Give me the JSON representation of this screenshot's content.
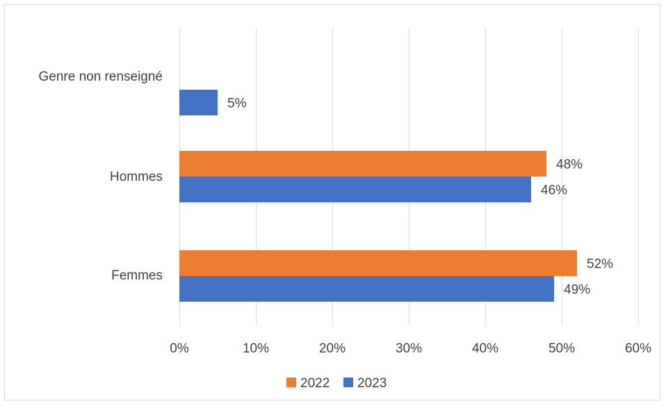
{
  "chart_data": {
    "type": "bar",
    "orientation": "horizontal",
    "categories": [
      "Genre non renseigné",
      "Hommes",
      "Femmes"
    ],
    "series": [
      {
        "name": "2022",
        "color": "#ED7D31",
        "values": [
          null,
          48,
          52
        ],
        "labels": [
          "",
          "48%",
          "52%"
        ]
      },
      {
        "name": "2023",
        "color": "#4472C4",
        "values": [
          5,
          46,
          49
        ],
        "labels": [
          "5%",
          "46%",
          "49%"
        ]
      }
    ],
    "xlim": [
      0,
      60
    ],
    "xticks": [
      0,
      10,
      20,
      30,
      40,
      50,
      60
    ],
    "xtick_labels": [
      "0%",
      "10%",
      "20%",
      "30%",
      "40%",
      "50%",
      "60%"
    ],
    "grid": true,
    "gridline_color": "#d9d9d9",
    "legend_position": "bottom",
    "title": "",
    "xlabel": "",
    "ylabel": ""
  }
}
